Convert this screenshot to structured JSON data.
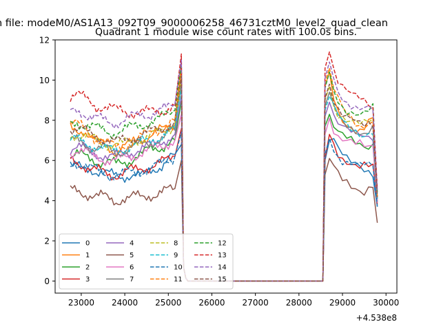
{
  "figure": {
    "suptitle": "n file: modeM0/AS1A13_092T09_9000006258_46731cztM0_level2_quad_clean",
    "offset_text": "+4.538e8"
  },
  "chart_data": {
    "type": "line",
    "title": "Quadrant 1 module wise count rates with 100.0s bins.",
    "xlabel": "",
    "ylabel": "",
    "x_offset": 453800000,
    "xlim": [
      22400,
      30250
    ],
    "ylim": [
      -0.6,
      12
    ],
    "xticks": [
      23000,
      24000,
      25000,
      26000,
      27000,
      28000,
      29000,
      30000
    ],
    "yticks": [
      0,
      2,
      4,
      6,
      8,
      10,
      12
    ],
    "grid": false,
    "legend_position": "lower-left",
    "gap": {
      "x_start": 27650,
      "x_end": 28550
    },
    "series": [
      {
        "name": "0",
        "color": "#1f77b4",
        "dash": "solid",
        "pre": [
          5.7,
          5.7,
          5.5,
          5.6,
          5.5,
          5.4,
          5.3,
          5.2,
          5.2,
          5.3,
          5.3,
          5.2,
          5.4,
          5.6,
          5.8,
          6.1,
          6.3,
          6.8
        ],
        "post": [
          6.0,
          7.0,
          6.9,
          6.4,
          6.2,
          6.0,
          5.9,
          5.9,
          5.8,
          5.7,
          5.6,
          5.5,
          3.7
        ]
      },
      {
        "name": "1",
        "color": "#ff7f0e",
        "dash": "solid",
        "pre": [
          7.7,
          7.6,
          7.5,
          7.1,
          6.9,
          6.9,
          6.7,
          6.4,
          6.6,
          6.8,
          7.0,
          7.1,
          7.2,
          7.4,
          7.5,
          7.6,
          7.8,
          10.6
        ],
        "post": [
          9.7,
          10.4,
          9.3,
          8.6,
          8.2,
          7.9,
          7.7,
          7.5,
          7.4,
          7.5,
          7.8,
          7.9,
          4.1
        ]
      },
      {
        "name": "2",
        "color": "#2ca02c",
        "dash": "solid",
        "pre": [
          6.2,
          6.3,
          6.2,
          6.1,
          6.0,
          5.9,
          5.9,
          5.8,
          5.9,
          6.0,
          6.2,
          6.3,
          6.5,
          6.6,
          6.7,
          6.9,
          7.0,
          9.0
        ],
        "post": [
          7.7,
          8.3,
          7.6,
          7.3,
          7.1,
          7.0,
          6.9,
          6.8,
          6.8,
          6.7,
          6.8,
          6.9,
          3.9
        ]
      },
      {
        "name": "3",
        "color": "#d62728",
        "dash": "solid",
        "pre": [
          6.0,
          5.9,
          5.8,
          5.6,
          5.5,
          5.4,
          5.3,
          5.3,
          5.4,
          5.5,
          5.5,
          5.6,
          5.7,
          5.8,
          5.9,
          6.0,
          6.2,
          7.6
        ],
        "post": [
          6.1,
          7.3,
          6.8,
          6.4,
          6.2,
          6.1,
          6.0,
          5.9,
          5.8,
          5.8,
          5.7,
          5.6,
          3.8
        ]
      },
      {
        "name": "4",
        "color": "#9467bd",
        "dash": "solid",
        "pre": [
          6.6,
          6.7,
          6.6,
          6.4,
          6.3,
          6.3,
          6.2,
          6.2,
          6.3,
          6.4,
          6.5,
          6.6,
          6.7,
          6.8,
          7.0,
          7.1,
          7.3,
          9.2
        ],
        "post": [
          8.2,
          8.9,
          8.2,
          7.8,
          7.6,
          7.4,
          7.3,
          7.2,
          7.2,
          7.1,
          7.2,
          7.2,
          4.0
        ]
      },
      {
        "name": "5",
        "color": "#8c564b",
        "dash": "solid",
        "pre": [
          4.5,
          4.5,
          4.4,
          4.3,
          4.2,
          4.2,
          4.1,
          4.0,
          4.1,
          4.1,
          4.2,
          4.2,
          4.3,
          4.3,
          4.4,
          4.5,
          4.6,
          6.0
        ],
        "post": [
          5.3,
          6.1,
          5.7,
          5.4,
          5.2,
          5.1,
          4.9,
          4.8,
          4.6,
          4.5,
          4.6,
          4.7,
          2.9
        ]
      },
      {
        "name": "6",
        "color": "#e377c2",
        "dash": "solid",
        "pre": [
          6.4,
          6.5,
          6.4,
          6.3,
          6.2,
          6.1,
          6.0,
          6.0,
          6.1,
          6.2,
          6.3,
          6.4,
          6.5,
          6.6,
          6.7,
          6.9,
          7.0,
          8.3
        ],
        "post": [
          7.3,
          8.1,
          7.6,
          7.2,
          7.0,
          6.9,
          6.8,
          6.7,
          6.7,
          6.6,
          6.6,
          6.7,
          3.9
        ]
      },
      {
        "name": "7",
        "color": "#7f7f7f",
        "dash": "solid",
        "pre": [
          6.9,
          7.0,
          6.9,
          6.7,
          6.6,
          6.6,
          6.5,
          6.4,
          6.5,
          6.6,
          6.7,
          6.8,
          6.9,
          7.0,
          7.1,
          7.3,
          7.5,
          9.8
        ],
        "post": [
          8.7,
          9.4,
          8.6,
          8.2,
          7.9,
          7.8,
          7.7,
          7.6,
          7.5,
          7.5,
          7.6,
          7.7,
          4.1
        ]
      },
      {
        "name": "8",
        "color": "#bcbd22",
        "dash": "dashed",
        "pre": [
          7.3,
          7.3,
          7.2,
          7.1,
          7.0,
          6.9,
          6.8,
          6.8,
          6.8,
          6.9,
          7.0,
          7.1,
          7.2,
          7.3,
          7.4,
          7.6,
          7.8,
          10.1
        ],
        "post": [
          9.0,
          9.7,
          8.8,
          8.4,
          8.2,
          8.0,
          7.9,
          7.8,
          7.7,
          7.7,
          7.8,
          7.9,
          4.2
        ]
      },
      {
        "name": "9",
        "color": "#17becf",
        "dash": "dashed",
        "pre": [
          7.0,
          7.0,
          6.9,
          6.8,
          6.7,
          6.6,
          6.5,
          6.5,
          6.6,
          6.7,
          6.8,
          6.9,
          7.0,
          7.1,
          7.2,
          7.4,
          7.6,
          9.6
        ],
        "post": [
          8.5,
          9.2,
          8.5,
          8.1,
          7.9,
          7.7,
          7.6,
          7.5,
          7.4,
          7.4,
          7.5,
          7.6,
          4.1
        ]
      },
      {
        "name": "10",
        "color": "#1f77b4",
        "dash": "dashed",
        "pre": [
          5.9,
          5.9,
          5.8,
          5.6,
          5.5,
          5.4,
          5.3,
          5.3,
          5.3,
          5.4,
          5.4,
          5.5,
          5.6,
          5.7,
          5.8,
          6.0,
          6.2,
          7.4
        ],
        "post": [
          6.3,
          7.1,
          6.7,
          6.3,
          6.1,
          6.0,
          5.9,
          5.8,
          5.7,
          5.7,
          5.6,
          5.6,
          3.7
        ]
      },
      {
        "name": "11",
        "color": "#ff7f0e",
        "dash": "dashed",
        "pre": [
          7.9,
          7.8,
          7.6,
          7.3,
          7.1,
          7.0,
          6.8,
          6.6,
          6.7,
          6.9,
          7.0,
          7.2,
          7.3,
          7.5,
          7.6,
          7.8,
          8.0,
          10.9
        ],
        "post": [
          9.9,
          10.6,
          9.5,
          8.9,
          8.5,
          8.2,
          8.0,
          7.8,
          7.7,
          7.8,
          8.0,
          8.1,
          4.2
        ]
      },
      {
        "name": "12",
        "color": "#2ca02c",
        "dash": "dashed",
        "pre": [
          7.8,
          7.9,
          7.8,
          7.7,
          7.6,
          7.5,
          7.4,
          7.4,
          7.5,
          7.6,
          7.7,
          7.8,
          7.9,
          8.0,
          8.1,
          8.3,
          8.5,
          10.8
        ],
        "post": [
          9.6,
          10.4,
          9.6,
          9.1,
          8.8,
          8.6,
          8.5,
          8.4,
          8.3,
          8.3,
          8.4,
          8.5,
          4.4
        ]
      },
      {
        "name": "13",
        "color": "#d62728",
        "dash": "dashed",
        "pre": [
          9.2,
          9.3,
          9.1,
          8.9,
          8.7,
          8.7,
          8.6,
          8.5,
          8.5,
          8.4,
          8.4,
          8.4,
          8.4,
          8.5,
          8.5,
          8.6,
          8.7,
          11.3
        ],
        "post": [
          10.6,
          11.4,
          10.4,
          9.8,
          9.5,
          9.3,
          9.2,
          9.1,
          9.1,
          9.0,
          8.9,
          8.8,
          4.6
        ]
      },
      {
        "name": "14",
        "color": "#9467bd",
        "dash": "dashed",
        "pre": [
          8.4,
          8.5,
          8.4,
          8.2,
          8.1,
          8.0,
          7.9,
          7.9,
          8.0,
          8.1,
          8.2,
          8.3,
          8.3,
          8.4,
          8.5,
          8.6,
          8.8,
          11.0
        ],
        "post": [
          10.1,
          10.9,
          10.0,
          9.5,
          9.2,
          9.0,
          8.9,
          8.8,
          8.7,
          8.7,
          8.6,
          8.5,
          4.5
        ]
      },
      {
        "name": "15",
        "color": "#8c564b",
        "dash": "dashed",
        "pre": [
          7.6,
          7.6,
          7.5,
          7.3,
          7.2,
          7.1,
          7.0,
          6.9,
          7.0,
          7.1,
          7.2,
          7.3,
          7.4,
          7.5,
          7.6,
          7.8,
          8.0,
          10.2
        ],
        "post": [
          9.1,
          9.8,
          9.0,
          8.5,
          8.2,
          8.0,
          7.9,
          7.8,
          7.7,
          7.7,
          7.8,
          7.8,
          4.2
        ]
      }
    ]
  }
}
